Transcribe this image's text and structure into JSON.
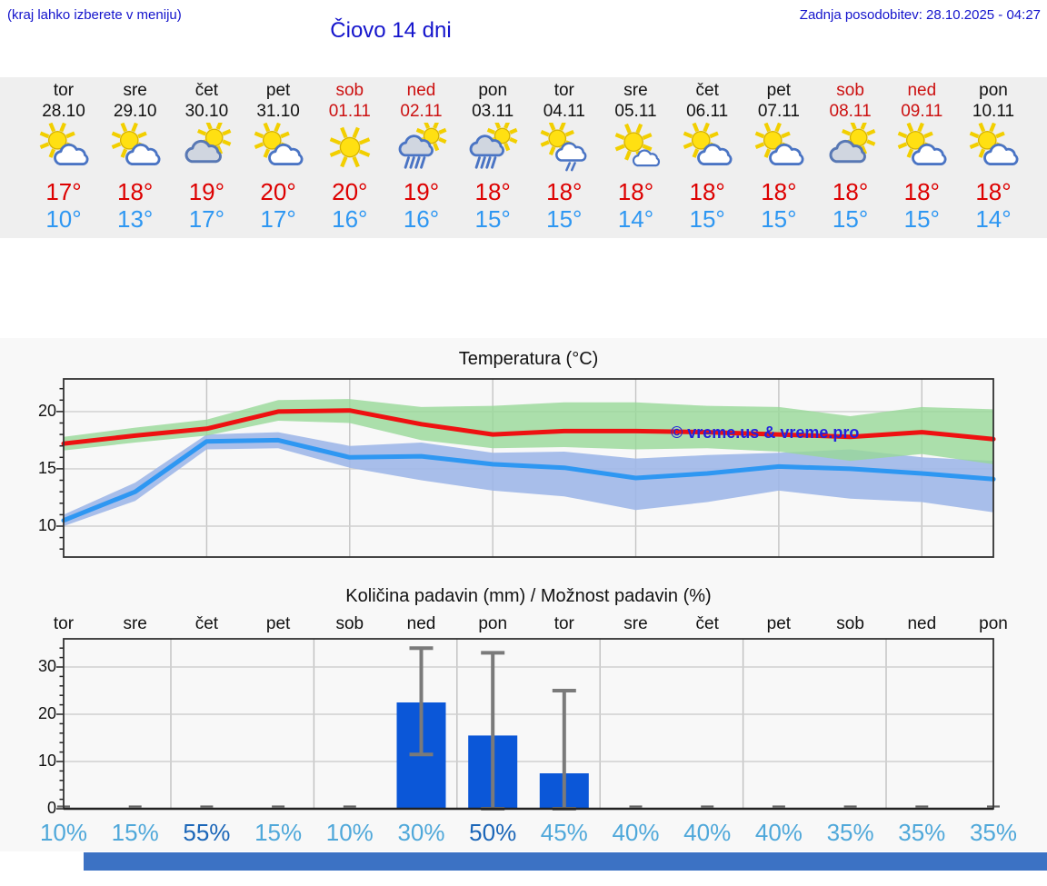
{
  "header": {
    "note": "(kraj lahko izberete v meniju)",
    "last_update": "Zadnja posodobitev: 28.10.2025 - 04:27",
    "title": "Čiovo 14 dni"
  },
  "colors": {
    "header_blue": "#1414cc",
    "high_temp_red": "#dd0000",
    "low_temp_blue": "#2e97f2",
    "weekend_red": "#cc1111",
    "strip_bg": "#efefef",
    "chart_bg": "#f8f8f8",
    "max_line": "#ee1111",
    "min_line": "#2e97f2",
    "max_band": "#97d897",
    "min_band": "#9fb7e8",
    "bar_blue": "#0b57d8",
    "whisker_gray": "#7a7a7a",
    "prob_light": "#4fa8da",
    "prob_dark": "#1b66b8",
    "footer_blue": "#3c72c4"
  },
  "forecast": {
    "days": [
      {
        "name": "tor",
        "date": "28.10",
        "weekend": false,
        "icon": "sun-cloud",
        "high": "17°",
        "low": "10°"
      },
      {
        "name": "sre",
        "date": "29.10",
        "weekend": false,
        "icon": "sun-cloud",
        "high": "18°",
        "low": "13°"
      },
      {
        "name": "čet",
        "date": "30.10",
        "weekend": false,
        "icon": "cloud-sun",
        "high": "19°",
        "low": "17°"
      },
      {
        "name": "pet",
        "date": "31.10",
        "weekend": false,
        "icon": "sun-cloud",
        "high": "20°",
        "low": "17°"
      },
      {
        "name": "sob",
        "date": "01.11",
        "weekend": true,
        "icon": "sun",
        "high": "20°",
        "low": "16°"
      },
      {
        "name": "ned",
        "date": "02.11",
        "weekend": true,
        "icon": "rain-sun",
        "high": "19°",
        "low": "16°"
      },
      {
        "name": "pon",
        "date": "03.11",
        "weekend": false,
        "icon": "rain-sun",
        "high": "18°",
        "low": "15°"
      },
      {
        "name": "tor",
        "date": "04.11",
        "weekend": false,
        "icon": "sun-cloud-lightrain",
        "high": "18°",
        "low": "15°"
      },
      {
        "name": "sre",
        "date": "05.11",
        "weekend": false,
        "icon": "sun-smallcloud",
        "high": "18°",
        "low": "14°"
      },
      {
        "name": "čet",
        "date": "06.11",
        "weekend": false,
        "icon": "sun-cloud",
        "high": "18°",
        "low": "15°"
      },
      {
        "name": "pet",
        "date": "07.11",
        "weekend": false,
        "icon": "sun-cloud",
        "high": "18°",
        "low": "15°"
      },
      {
        "name": "sob",
        "date": "08.11",
        "weekend": true,
        "icon": "cloud-sun",
        "high": "18°",
        "low": "15°"
      },
      {
        "name": "ned",
        "date": "09.11",
        "weekend": true,
        "icon": "sun-cloud",
        "high": "18°",
        "low": "15°"
      },
      {
        "name": "pon",
        "date": "10.11",
        "weekend": false,
        "icon": "sun-cloud",
        "high": "18°",
        "low": "14°"
      }
    ]
  },
  "chart_data": [
    {
      "type": "line",
      "title": "Temperatura (°C)",
      "watermark": "© vreme.us & vreme.pro",
      "x_dates": [
        "28.10",
        "29.10",
        "30.10",
        "31.10",
        "01.11",
        "02.11",
        "03.11",
        "04.11",
        "05.11",
        "06.11",
        "07.11",
        "08.11",
        "09.11",
        "10.11"
      ],
      "yticks": [
        10,
        15,
        20
      ],
      "ylim": [
        7.3,
        22.85
      ],
      "grid": true,
      "series": [
        {
          "name": "max-temp",
          "color": "#ee1111",
          "values": [
            17.2,
            17.9,
            18.5,
            20.0,
            20.1,
            18.9,
            18.0,
            18.3,
            18.3,
            18.2,
            18.0,
            17.8,
            18.2,
            17.6
          ],
          "band_upper": [
            17.8,
            18.6,
            19.3,
            21.0,
            21.1,
            20.4,
            20.5,
            20.8,
            20.8,
            20.5,
            20.4,
            19.6,
            20.4,
            20.2
          ],
          "band_lower": [
            16.6,
            17.3,
            17.9,
            19.2,
            19.0,
            17.5,
            16.8,
            16.9,
            16.7,
            16.8,
            16.5,
            15.7,
            16.3,
            15.4
          ],
          "band_color": "#97d897"
        },
        {
          "name": "min-temp",
          "color": "#2e97f2",
          "values": [
            10.5,
            13.0,
            17.4,
            17.5,
            16.0,
            16.1,
            15.4,
            15.1,
            14.2,
            14.6,
            15.2,
            15.0,
            14.6,
            14.1
          ],
          "band_upper": [
            11.0,
            13.8,
            18.0,
            18.2,
            17.0,
            17.3,
            16.4,
            16.5,
            15.9,
            16.2,
            16.4,
            16.7,
            16.0,
            15.7
          ],
          "band_lower": [
            10.0,
            12.2,
            16.7,
            16.8,
            15.1,
            14.0,
            13.1,
            12.6,
            11.4,
            12.1,
            13.1,
            12.4,
            12.1,
            11.2
          ],
          "band_color": "#9fb7e8"
        }
      ]
    },
    {
      "type": "bar",
      "title": "Količina padavin (mm) / Možnost padavin (%)",
      "categories": [
        "tor",
        "sre",
        "čet",
        "pet",
        "sob",
        "ned",
        "pon",
        "tor",
        "sre",
        "čet",
        "pet",
        "sob",
        "ned",
        "pon"
      ],
      "yticks": [
        0,
        10,
        20,
        30
      ],
      "ylim": [
        0,
        36
      ],
      "grid": true,
      "values_mm": [
        0,
        0,
        0,
        0,
        0,
        22.5,
        15.5,
        7.5,
        0,
        0,
        0,
        0,
        0,
        0
      ],
      "whisker_high": [
        0,
        0,
        0,
        0,
        0,
        34,
        33,
        25,
        0,
        0,
        0,
        0,
        0,
        0
      ],
      "whisker_low": [
        0,
        0,
        0,
        0,
        0,
        11.5,
        0,
        0,
        0,
        0,
        0,
        0,
        0,
        0
      ],
      "bar_color": "#0b57d8",
      "probabilities_pct": [
        10,
        15,
        55,
        15,
        10,
        30,
        50,
        45,
        40,
        40,
        40,
        35,
        35,
        35
      ]
    }
  ]
}
